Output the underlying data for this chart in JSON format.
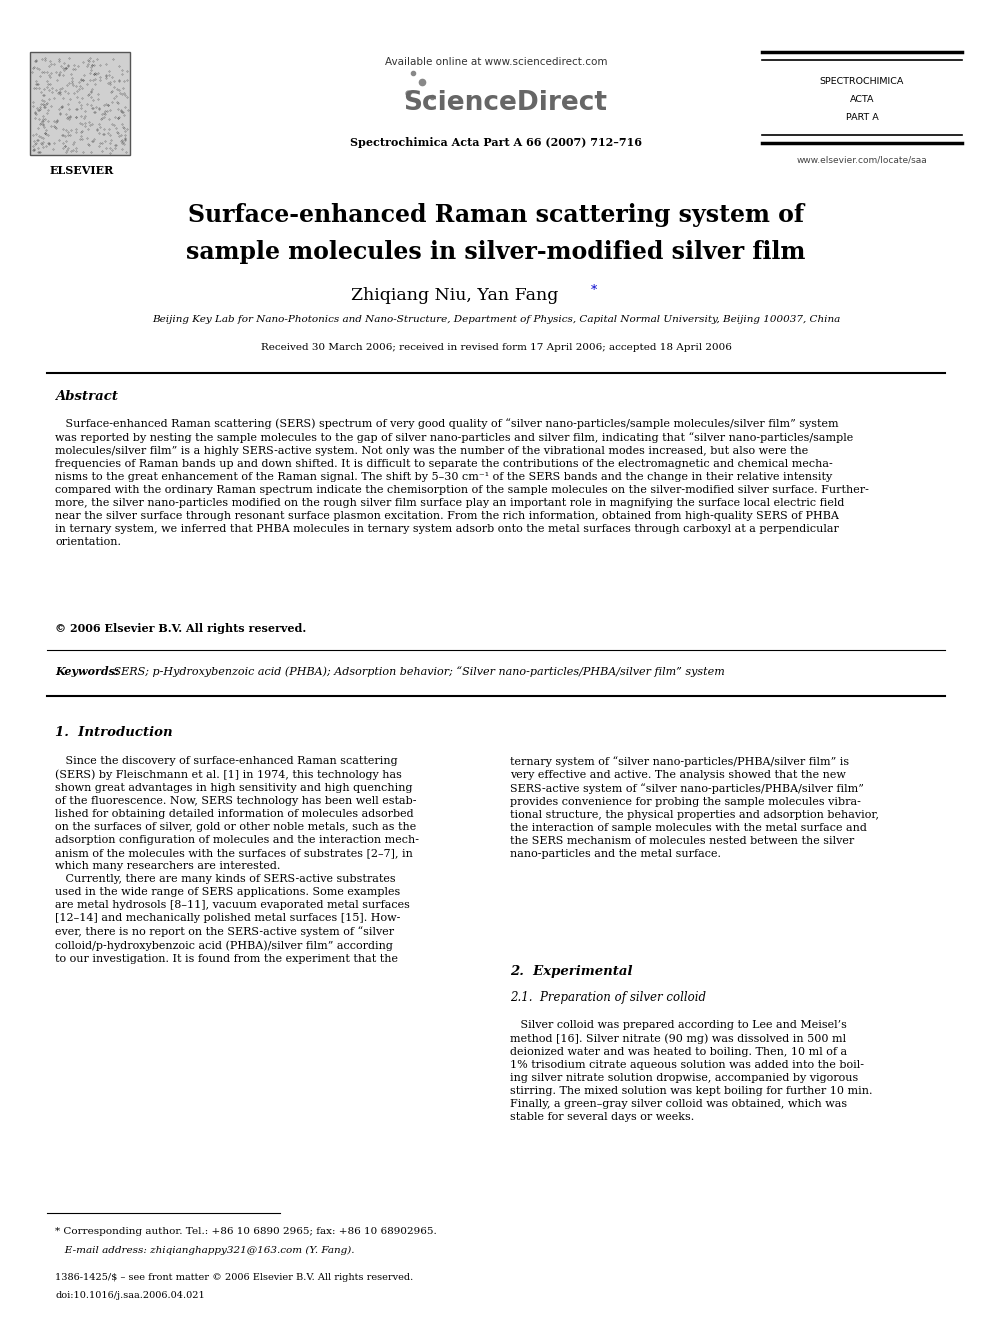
{
  "page_width": 9.92,
  "page_height": 13.23,
  "bg_color": "#ffffff",
  "header_available": "Available online at www.sciencedirect.com",
  "header_journal": "ScienceDirect",
  "header_citation": "Spectrochimica Acta Part A 66 (2007) 712–716",
  "elsevier_label": "ELSEVIER",
  "spectra1": "SPECTROCHIMICA",
  "spectra2": "ACTA",
  "spectra3": "PART A",
  "website": "www.elsevier.com/locate/saa",
  "title1": "Surface-enhanced Raman scattering system of",
  "title2": "sample molecules in silver-modified silver film",
  "authors": "Zhiqiang Niu, Yan Fang",
  "affiliation": "Beijing Key Lab for Nano-Photonics and Nano-Structure, Department of Physics, Capital Normal University, Beijing 100037, China",
  "received": "Received 30 March 2006; received in revised form 17 April 2006; accepted 18 April 2006",
  "abstract_title": "Abstract",
  "abstract_text": "   Surface-enhanced Raman scattering (SERS) spectrum of very good quality of “silver nano-particles/sample molecules/silver film” system\nwas reported by nesting the sample molecules to the gap of silver nano-particles and silver film, indicating that “silver nano-particles/sample\nmolecules/silver film” is a highly SERS-active system. Not only was the number of the vibrational modes increased, but also were the\nfrequencies of Raman bands up and down shifted. It is difficult to separate the contributions of the electromagnetic and chemical mecha-\nnisms to the great enhancement of the Raman signal. The shift by 5–30 cm⁻¹ of the SERS bands and the change in their relative intensity\ncompared with the ordinary Raman spectrum indicate the chemisorption of the sample molecules on the silver-modified silver surface. Further-\nmore, the silver nano-particles modified on the rough silver film surface play an important role in magnifying the surface local electric field\nnear the silver surface through resonant surface plasmon excitation. From the rich information, obtained from high-quality SERS of PHBA\nin ternary system, we inferred that PHBA molecules in ternary system adsorb onto the metal surfaces through carboxyl at a perpendicular\norientation.",
  "copyright": "© 2006 Elsevier B.V. All rights reserved.",
  "keywords_bold": "Keywords: ",
  "keywords_text": " SERS; p-Hydroxybenzoic acid (PHBA); Adsorption behavior; “Silver nano-particles/PHBA/silver film” system",
  "s1_title": "1.  Introduction",
  "s1_left": "   Since the discovery of surface-enhanced Raman scattering\n(SERS) by Fleischmann et al. [1] in 1974, this technology has\nshown great advantages in high sensitivity and high quenching\nof the fluorescence. Now, SERS technology has been well estab-\nlished for obtaining detailed information of molecules adsorbed\non the surfaces of silver, gold or other noble metals, such as the\nadsorption configuration of molecules and the interaction mech-\nanism of the molecules with the surfaces of substrates [2–7], in\nwhich many researchers are interested.\n   Currently, there are many kinds of SERS-active substrates\nused in the wide range of SERS applications. Some examples\nare metal hydrosols [8–11], vacuum evaporated metal surfaces\n[12–14] and mechanically polished metal surfaces [15]. How-\never, there is no report on the SERS-active system of “silver\ncolloid/p-hydroxybenzoic acid (PHBA)/silver film” according\nto our investigation. It is found from the experiment that the",
  "s1_right": "ternary system of “silver nano-particles/PHBA/silver film” is\nvery effective and active. The analysis showed that the new\nSERS-active system of “silver nano-particles/PHBA/silver film”\nprovides convenience for probing the sample molecules vibra-\ntional structure, the physical properties and adsorption behavior,\nthe interaction of sample molecules with the metal surface and\nthe SERS mechanism of molecules nested between the silver\nnano-particles and the metal surface.",
  "s2_title": "2.  Experimental",
  "s2_sub": "2.1.  Preparation of silver colloid",
  "s2_right": "   Silver colloid was prepared according to Lee and Meisel’s\nmethod [16]. Silver nitrate (90 mg) was dissolved in 500 ml\ndeionized water and was heated to boiling. Then, 10 ml of a\n1% trisodium citrate aqueous solution was added into the boil-\ning silver nitrate solution dropwise, accompanied by vigorous\nstirring. The mixed solution was kept boiling for further 10 min.\nFinally, a green–gray silver colloid was obtained, which was\nstable for several days or weeks.",
  "fn_star": "* Corresponding author. Tel.: +86 10 6890 2965; fax: +86 10 68902965.",
  "fn_email": "   E-mail address: zhiqianghappy321@163.com (Y. Fang).",
  "fn_issn": "1386-1425/$ – see front matter © 2006 Elsevier B.V. All rights reserved.",
  "fn_doi": "doi:10.1016/j.saa.2006.04.021"
}
